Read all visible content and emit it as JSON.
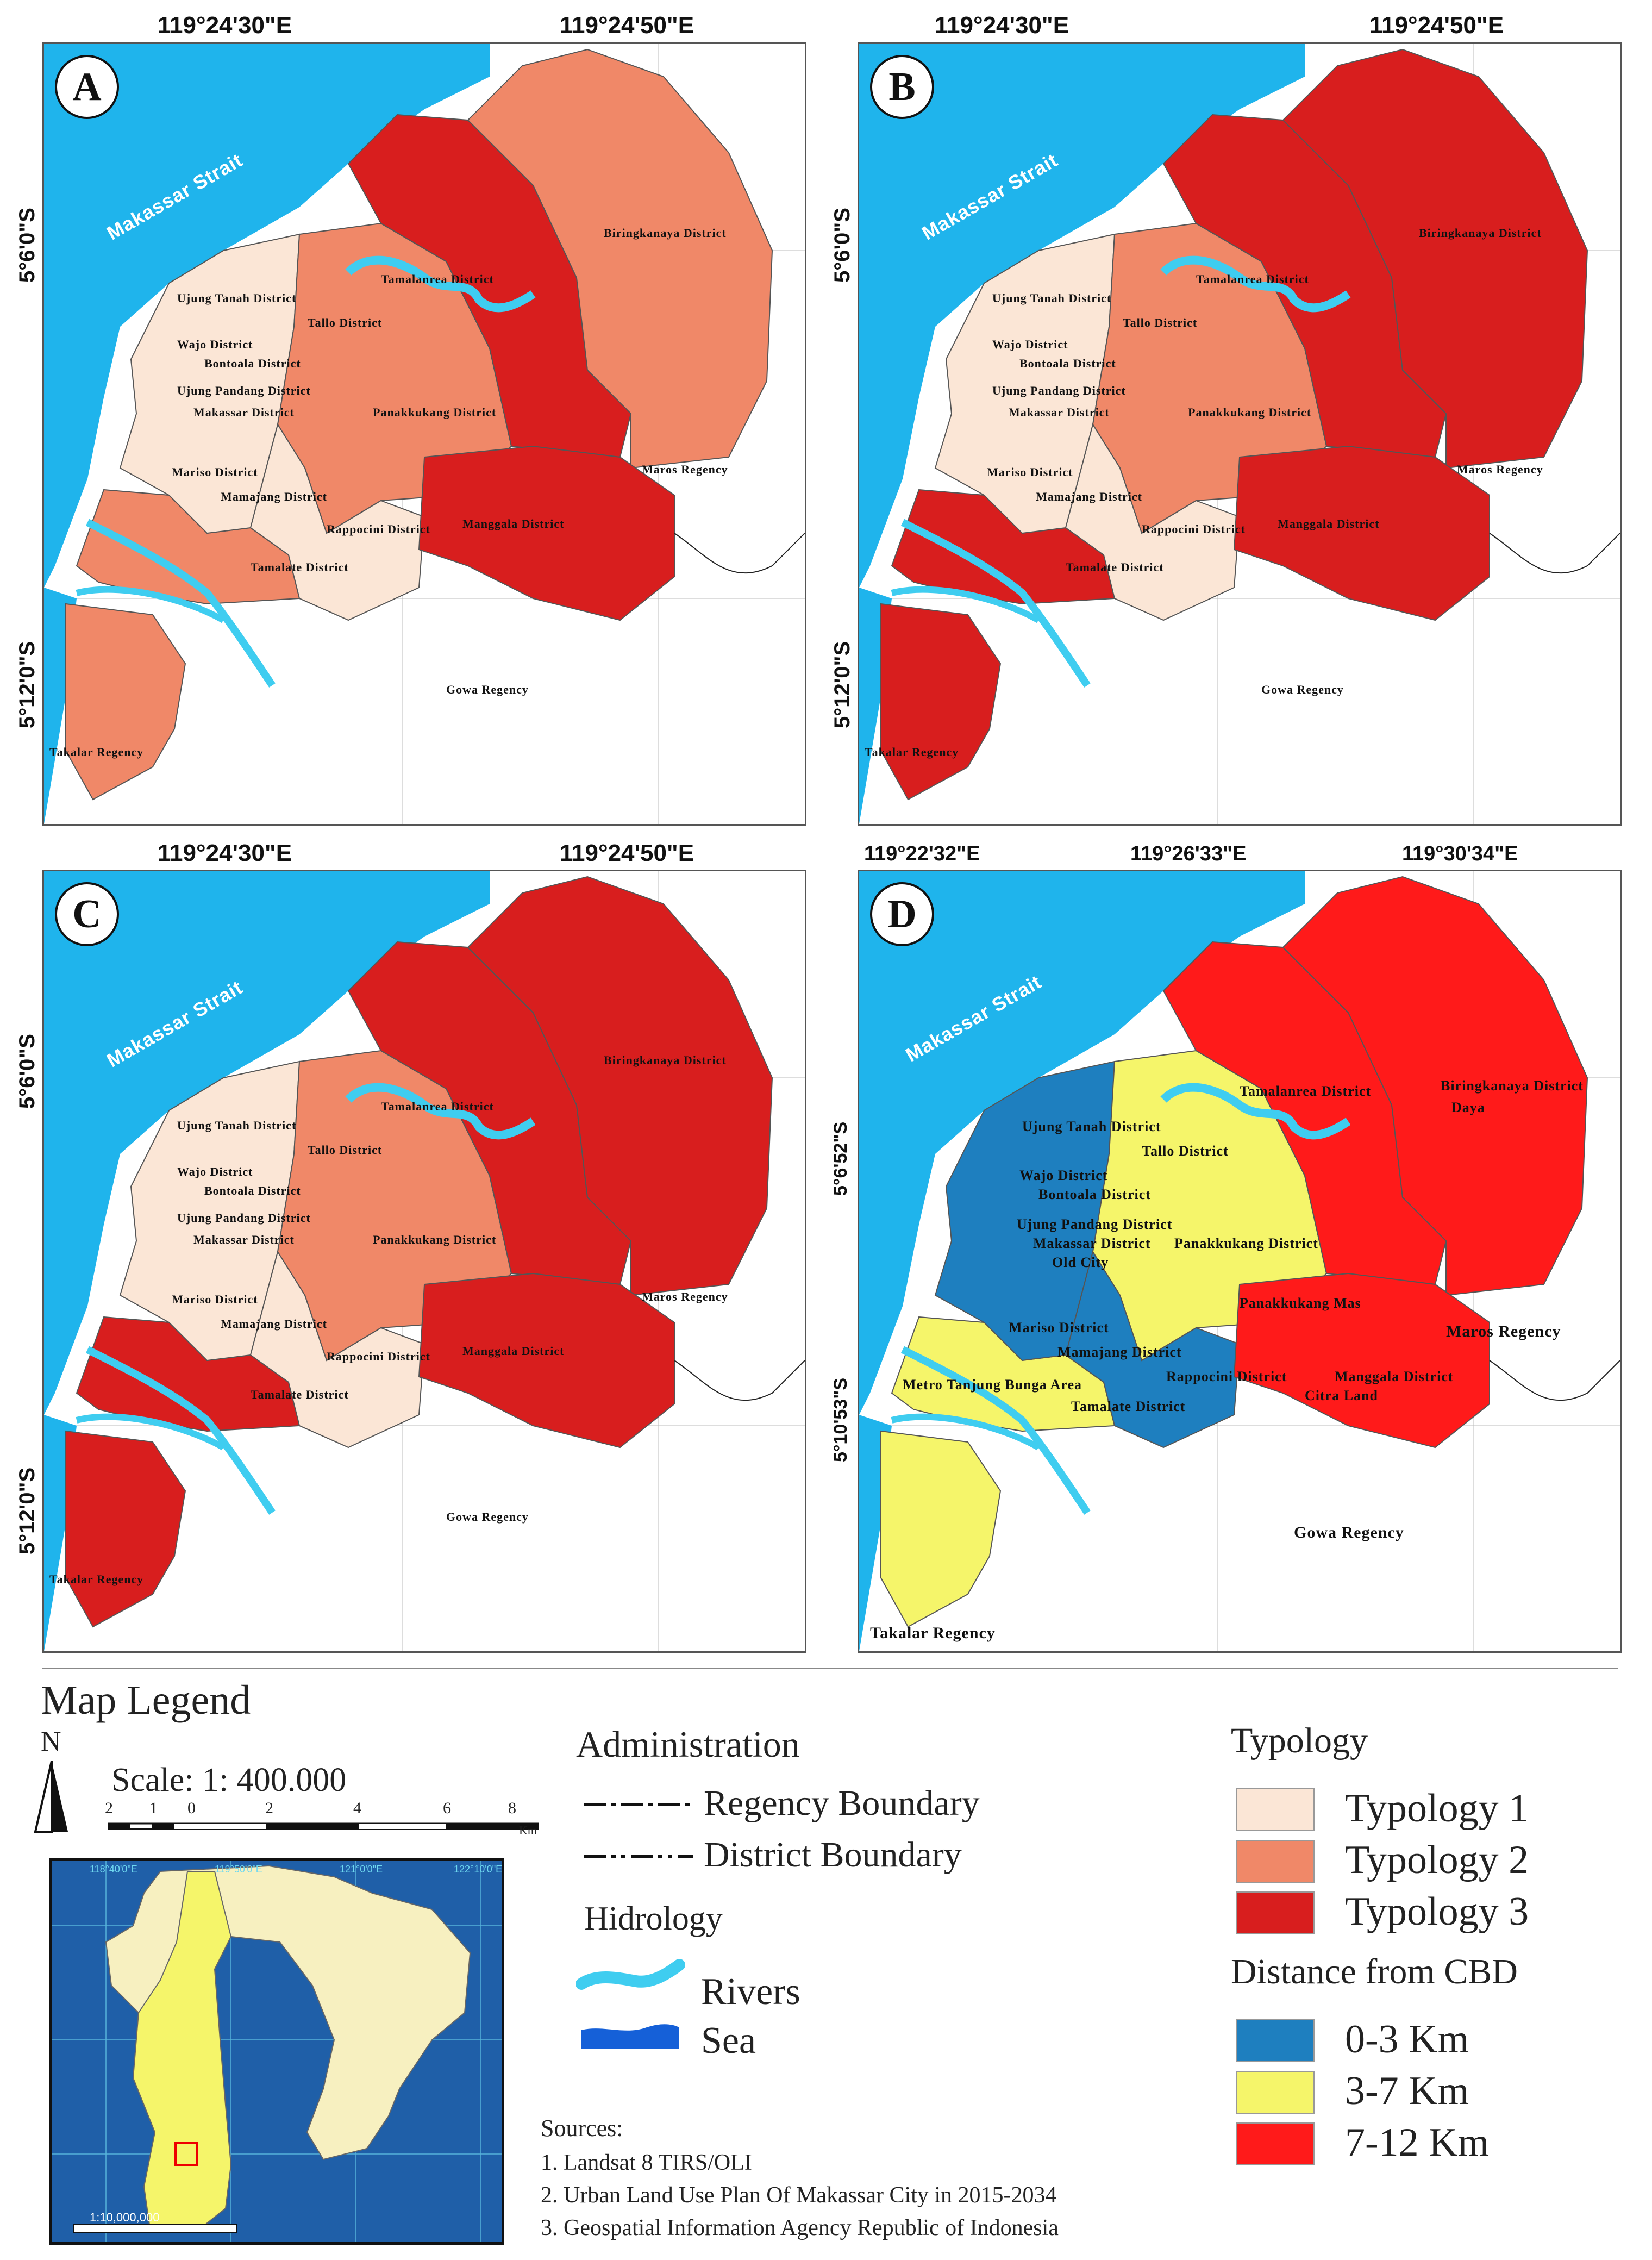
{
  "panels": [
    {
      "letter": "A",
      "coords_top": [
        "119°24'30\"E",
        "119°24'50\"E"
      ],
      "coords_left": [
        "5°6'0\"S",
        "5°12'0\"S"
      ],
      "colors": {
        "west": "#fbe6d6",
        "mid": "#f08868",
        "east": "#d81e1e",
        "biring": "#f08868",
        "mangga": "#d81e1e",
        "south": "#f08868"
      }
    },
    {
      "letter": "B",
      "coords_top": [
        "119°24'30\"E",
        "119°24'50\"E"
      ],
      "coords_left": [
        "5°6'0\"S",
        "5°12'0\"S"
      ],
      "colors": {
        "west": "#fbe6d6",
        "mid": "#f08868",
        "east": "#d81e1e",
        "biring": "#d81e1e",
        "mangga": "#d81e1e",
        "south": "#d81e1e"
      }
    },
    {
      "letter": "C",
      "coords_top": [
        "119°24'30\"E",
        "119°24'50\"E"
      ],
      "coords_left": [
        "5°6'0\"S",
        "5°12'0\"S"
      ],
      "colors": {
        "west": "#fbe6d6",
        "mid": "#f08868",
        "east": "#d81e1e",
        "biring": "#d81e1e",
        "mangga": "#d81e1e",
        "south": "#d81e1e"
      }
    },
    {
      "letter": "D",
      "coords_top": [
        "119°22'32\"E",
        "119°26'33\"E",
        "119°30'34\"E"
      ],
      "coords_left": [
        "5°6'52\"S",
        "5°10'53\"S"
      ],
      "colors": {
        "west": "#1e7fbf",
        "mid": "#f5f56a",
        "east": "#ff1a1a",
        "biring": "#ff1a1a",
        "mangga": "#ff1a1a",
        "south": "#f5f56a"
      }
    }
  ],
  "district_labels_abc": [
    "Biringkanaya District",
    "Tamalanrea District",
    "Ujung Tanah District",
    "Tallo District",
    "Wajo District",
    "Bontoala District",
    "Ujung Pandang District",
    "Makassar District",
    "Panakkukang District",
    "Mariso District",
    "Mamajang District",
    "Rappocini District",
    "Manggala District",
    "Tamalate District",
    "Maros Regency",
    "Gowa Regency",
    "Takalar Regency",
    "Makassar Strait"
  ],
  "district_labels_d": [
    "Tamalanrea District",
    "Biringkanaya District",
    "Daya",
    "Ujung Tanah District",
    "Tallo District",
    "Wajo District",
    "Bontoala District",
    "Ujung Pandang District",
    "Makassar District",
    "Old City",
    "Panakkukang District",
    "Panakkukang Mas",
    "Mariso District",
    "Mamajang District",
    "Rappocini District",
    "Metro Tanjung Bunga Area",
    "Tamalate District",
    "Manggala District",
    "Citra Land",
    "Maros Regency",
    "Gowa Regency",
    "Takalar Regency",
    "Makassar Strait"
  ],
  "legend": {
    "title": "Map Legend",
    "north": "N",
    "scale": "Scale: 1: 400.000",
    "scale_ticks": [
      "2",
      "1",
      "0",
      "2",
      "4",
      "6",
      "8"
    ],
    "scale_unit": "Km",
    "admin_title": "Administration",
    "regency_boundary": "Regency Boundary",
    "district_boundary": "District Boundary",
    "hidro_title": "Hidrology",
    "rivers": "Rivers",
    "sea": "Sea",
    "typology_title": "Typology",
    "typologies": [
      {
        "label": "Typology 1",
        "color": "#fbe6d6"
      },
      {
        "label": "Typology 2",
        "color": "#f08868"
      },
      {
        "label": "Typology 3",
        "color": "#d81e1e"
      }
    ],
    "distance_title": "Distance from CBD",
    "distances": [
      {
        "label": "0-3 Km",
        "color": "#1e7fbf"
      },
      {
        "label": "3-7 Km",
        "color": "#f5f56a"
      },
      {
        "label": "7-12 Km",
        "color": "#ff1a1a"
      }
    ],
    "sources_title": "Sources:",
    "sources": [
      "1. Landsat 8 TIRS/OLI",
      "2. Urban Land Use Plan Of Makassar City in 2015-2034",
      "3. Geospatial Information Agency Republic of Indonesia"
    ],
    "inset_scale": "1:10,000,000",
    "inset_coords": [
      "118°40'0\"E",
      "119°50'0\"E",
      "121°0'0\"E",
      "122°10'0\"E"
    ]
  },
  "colors": {
    "sea": "#1fb4ec",
    "river": "#3fcdf0",
    "sea_legend": "#1560d8"
  }
}
